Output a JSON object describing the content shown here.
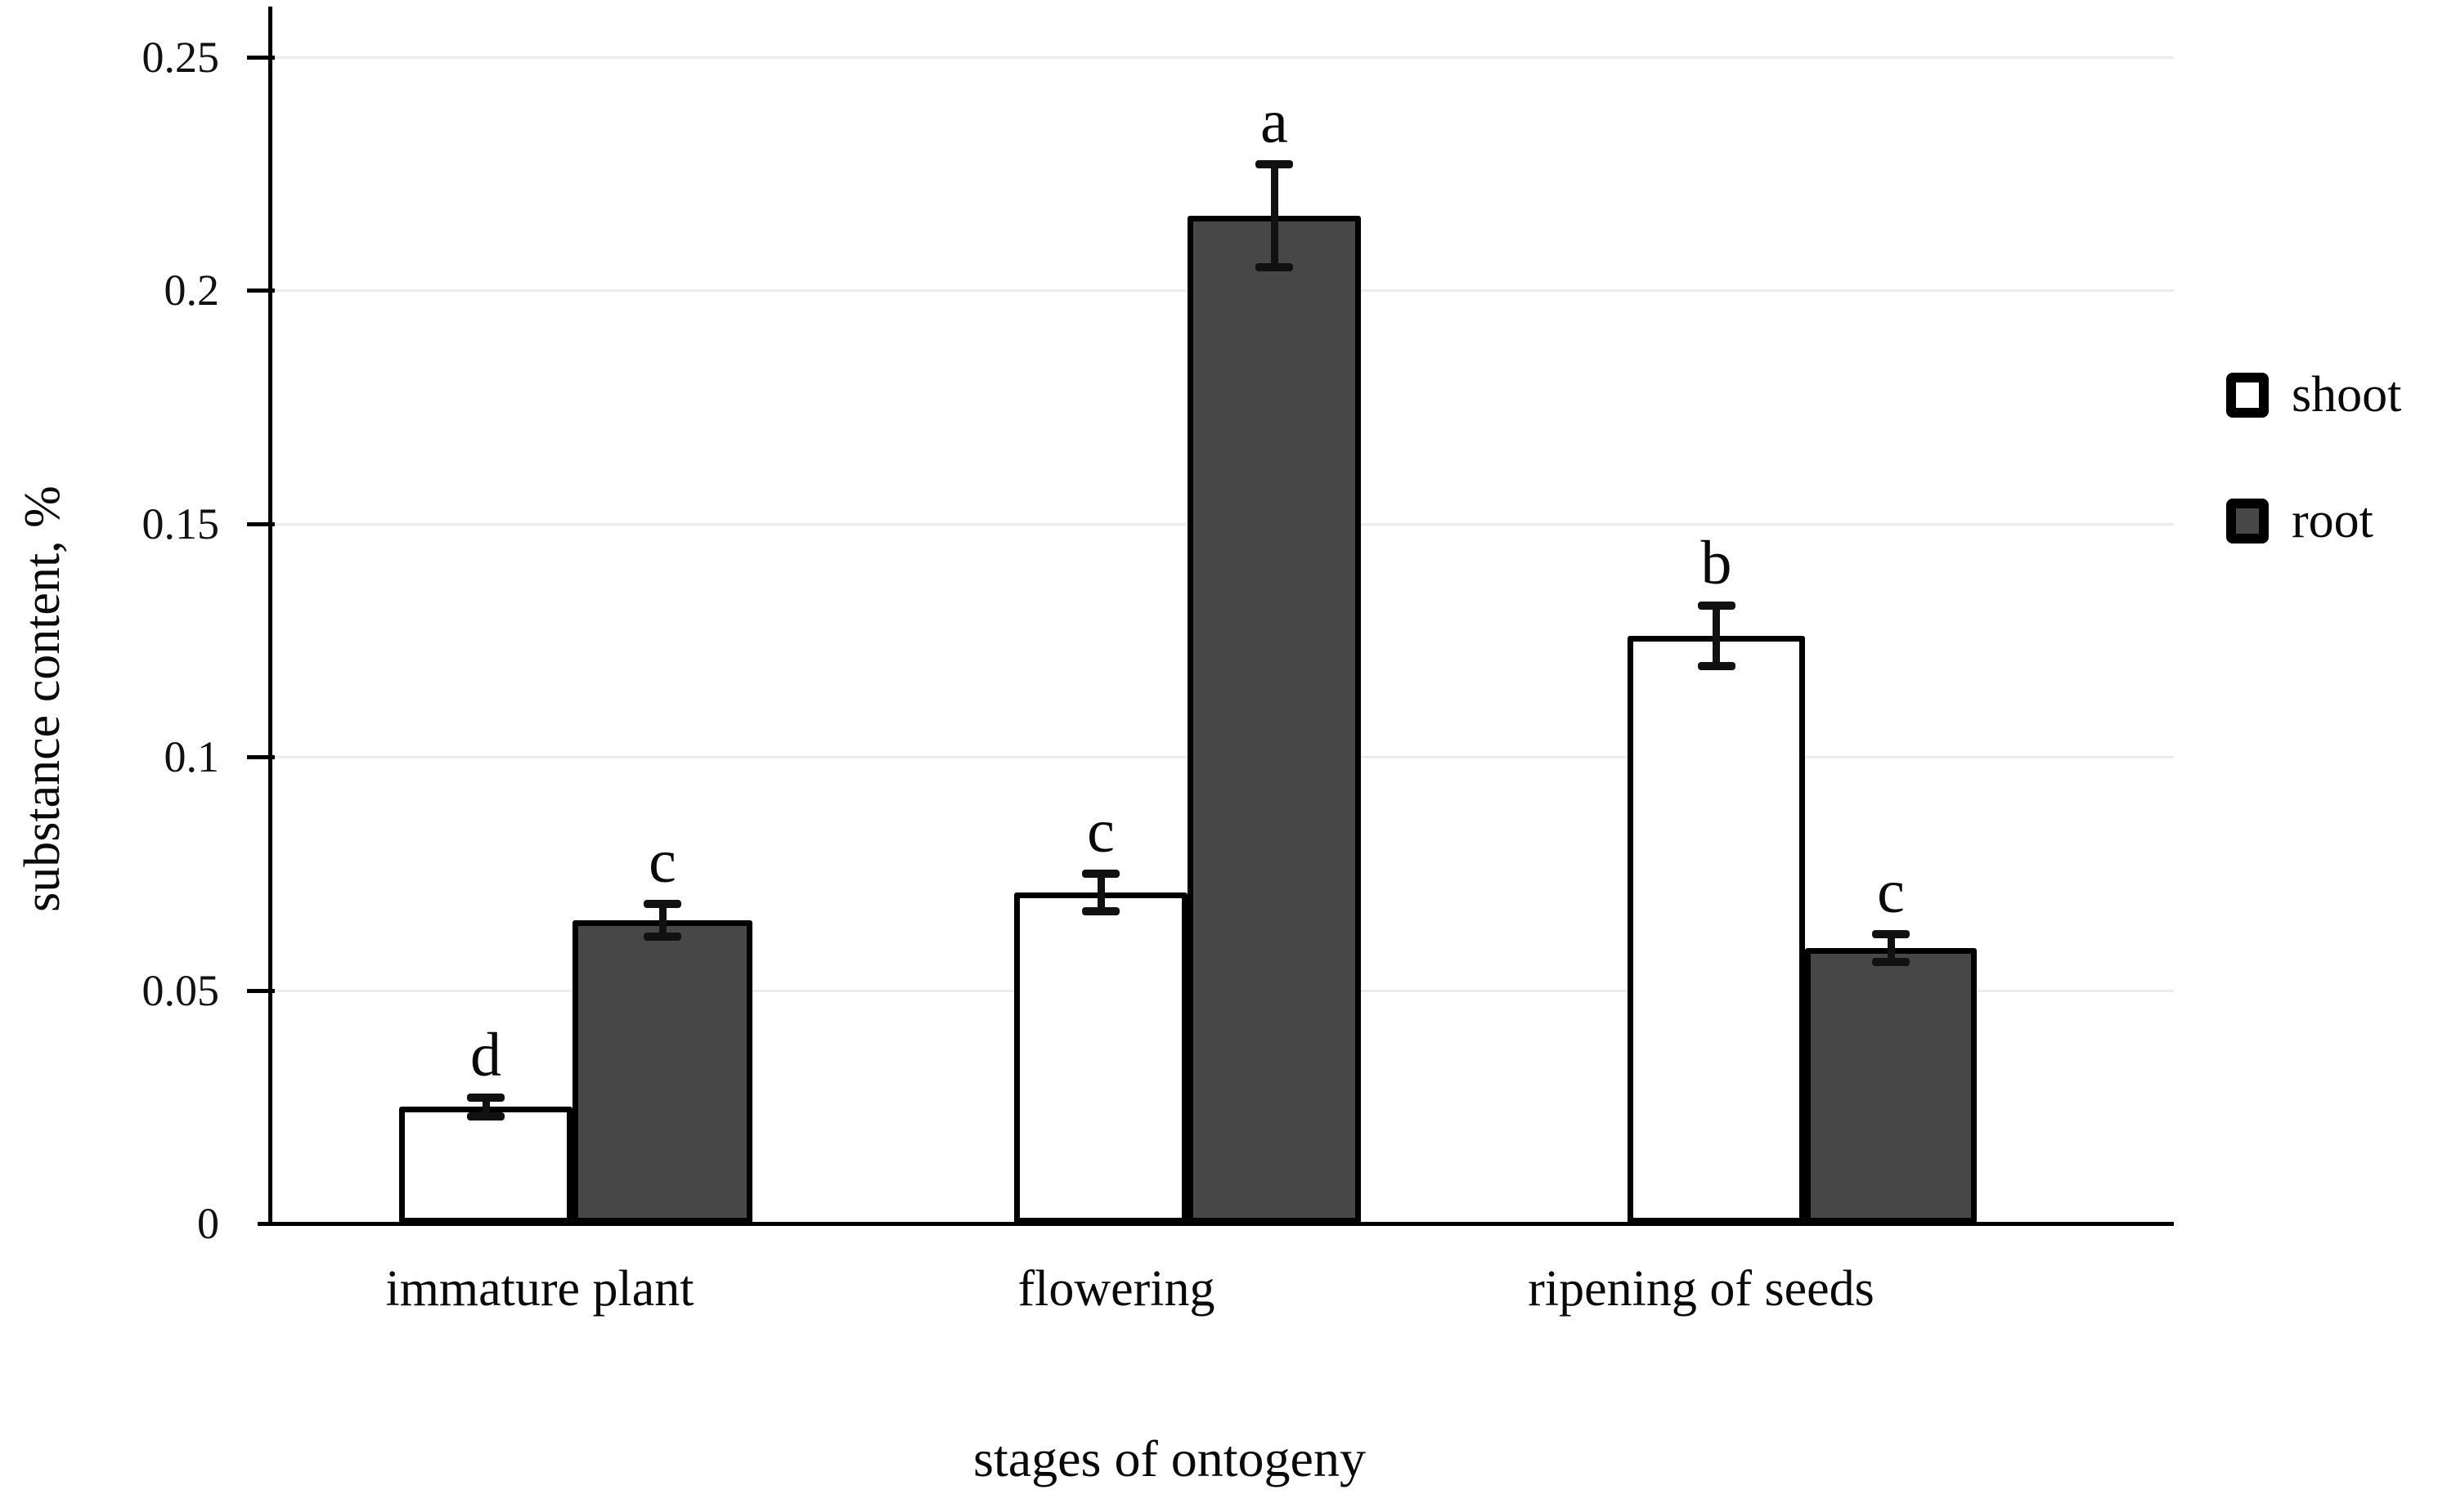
{
  "figure": {
    "background": "#ffffff",
    "description": "grouped bar chart with error bars and significance letters"
  },
  "colors": {
    "axis": "#000000",
    "text": "#0a0a0a",
    "gridline": "#ededed",
    "bar_border": "#000000",
    "shoot_fill": "#ffffff",
    "root_fill": "#474747"
  },
  "chart_data": {
    "type": "bar",
    "title": "",
    "xlabel": "stages of ontogeny",
    "ylabel": "substance content, %",
    "categories": [
      "immature plant",
      "flowering",
      "ripening of seeds"
    ],
    "series": [
      {
        "name": "shoot",
        "fill": "#ffffff",
        "values": [
          0.025,
          0.071,
          0.126
        ],
        "errors": [
          0.002,
          0.004,
          0.0065
        ],
        "letters": [
          "d",
          "c",
          "b"
        ]
      },
      {
        "name": "root",
        "fill": "#474747",
        "values": [
          0.065,
          0.216,
          0.059
        ],
        "errors": [
          0.0035,
          0.011,
          0.003
        ],
        "letters": [
          "c",
          "a",
          "c"
        ]
      }
    ],
    "ylim": [
      0,
      0.25
    ],
    "yticks": [
      0,
      0.05,
      0.1,
      0.15,
      0.2,
      0.25
    ],
    "ytick_labels": [
      "0",
      "0.05",
      "0.1",
      "0.15",
      "0.2",
      "0.25"
    ],
    "grid": true,
    "error_bars": true,
    "significance_letters": true,
    "legend_position": "right"
  }
}
